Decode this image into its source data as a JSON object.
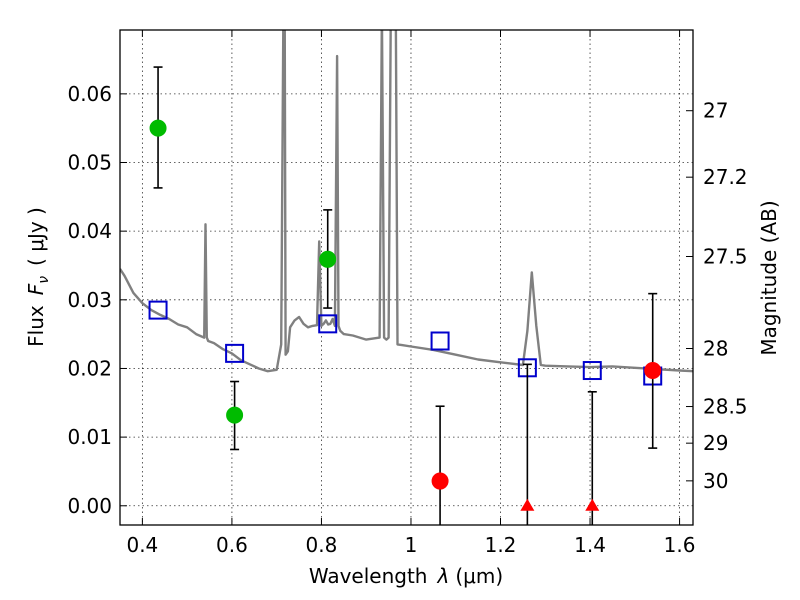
{
  "chart_data": {
    "type": "scatter",
    "x_axis": {
      "label_prefix": "Wavelength",
      "label_symbol": "λ",
      "label_unit": "(μm)",
      "range": [
        0.35,
        1.63
      ],
      "ticks": [
        0.4,
        0.6,
        0.8,
        1.0,
        1.2,
        1.4,
        1.6
      ],
      "tick_labels": [
        "0.4",
        "0.6",
        "0.8",
        "1",
        "1.2",
        "1.4",
        "1.6"
      ]
    },
    "y_axis": {
      "label_prefix": "Flux",
      "label_symbol": "F",
      "label_subscript": "ν",
      "label_unit": "( μJy )",
      "range": [
        -0.0028,
        0.0693
      ],
      "ticks": [
        0.0,
        0.01,
        0.02,
        0.03,
        0.04,
        0.05,
        0.06
      ],
      "tick_labels": [
        "0.00",
        "0.01",
        "0.02",
        "0.03",
        "0.04",
        "0.05",
        "0.06"
      ]
    },
    "y2_axis": {
      "label": "Magnitude (AB)",
      "ticks": [
        27,
        27.2,
        27.5,
        28,
        28.5,
        29,
        30
      ],
      "tick_labels": [
        "27",
        "27.2",
        "27.5",
        "28",
        "28.5",
        "29",
        "30"
      ]
    },
    "grid": true,
    "series": [
      {
        "kind": "model-spectrum",
        "color": "#808080",
        "x": [
          0.35,
          0.36,
          0.38,
          0.4,
          0.42,
          0.44,
          0.46,
          0.48,
          0.5,
          0.52,
          0.538,
          0.541,
          0.544,
          0.547,
          0.56,
          0.58,
          0.6,
          0.62,
          0.64,
          0.66,
          0.68,
          0.7,
          0.71,
          0.715,
          0.718,
          0.72,
          0.725,
          0.73,
          0.74,
          0.75,
          0.76,
          0.77,
          0.78,
          0.79,
          0.795,
          0.8,
          0.805,
          0.81,
          0.815,
          0.82,
          0.825,
          0.83,
          0.835,
          0.838,
          0.842,
          0.85,
          0.87,
          0.9,
          0.93,
          0.935,
          0.94,
          0.945,
          0.95,
          0.955,
          0.958,
          0.962,
          0.966,
          0.97,
          0.98,
          1.0,
          1.05,
          1.1,
          1.15,
          1.2,
          1.25,
          1.26,
          1.27,
          1.28,
          1.29,
          1.3,
          1.35,
          1.4,
          1.45,
          1.5,
          1.55,
          1.6,
          1.63
        ],
        "y": [
          0.0345,
          0.0335,
          0.031,
          0.0295,
          0.0285,
          0.0278,
          0.0272,
          0.0264,
          0.026,
          0.025,
          0.0245,
          0.041,
          0.0245,
          0.024,
          0.0237,
          0.0228,
          0.0222,
          0.0212,
          0.0206,
          0.02,
          0.0196,
          0.0198,
          0.0235,
          0.072,
          0.072,
          0.022,
          0.0225,
          0.026,
          0.027,
          0.0275,
          0.0265,
          0.026,
          0.0262,
          0.0263,
          0.0385,
          0.0262,
          0.0265,
          0.027,
          0.0264,
          0.0265,
          0.0272,
          0.0262,
          0.0655,
          0.0262,
          0.0255,
          0.025,
          0.0248,
          0.0242,
          0.0245,
          0.072,
          0.0245,
          0.0242,
          0.0245,
          0.072,
          0.072,
          0.072,
          0.072,
          0.0235,
          0.0234,
          0.0232,
          0.0227,
          0.022,
          0.0213,
          0.0209,
          0.0205,
          0.0255,
          0.034,
          0.0262,
          0.0205,
          0.0204,
          0.0203,
          0.0202,
          0.0203,
          0.0201,
          0.0199,
          0.0197,
          0.0196
        ]
      },
      {
        "kind": "model-photometry",
        "marker": "open-square",
        "color": "#0000cc",
        "x": [
          0.435,
          0.606,
          0.814,
          1.065,
          1.26,
          1.405,
          1.54
        ],
        "y": [
          0.0285,
          0.0222,
          0.0265,
          0.024,
          0.0201,
          0.0197,
          0.0189
        ]
      },
      {
        "kind": "detections",
        "marker": "filled-circle",
        "color": "#00bb00",
        "x": [
          0.435,
          0.606,
          0.814
        ],
        "y": [
          0.055,
          0.0132,
          0.0359
        ],
        "err_low": [
          0.0463,
          0.0082,
          0.0288
        ],
        "err_high": [
          0.0639,
          0.0181,
          0.0431
        ]
      },
      {
        "kind": "low-snr",
        "marker": "filled-circle",
        "color": "#ff0000",
        "x": [
          1.065,
          1.54
        ],
        "y": [
          0.0036,
          0.0197
        ],
        "err_low": [
          -0.0028,
          0.0084
        ],
        "err_high": [
          0.0145,
          0.0309
        ]
      },
      {
        "kind": "upper-limits",
        "marker": "filled-triangle",
        "color": "#ff0000",
        "x": [
          1.26,
          1.405
        ],
        "y": [
          0.0,
          0.0
        ],
        "err_low": [
          -0.0028,
          -0.0028
        ],
        "err_high": [
          0.0206,
          0.0166
        ]
      }
    ]
  }
}
